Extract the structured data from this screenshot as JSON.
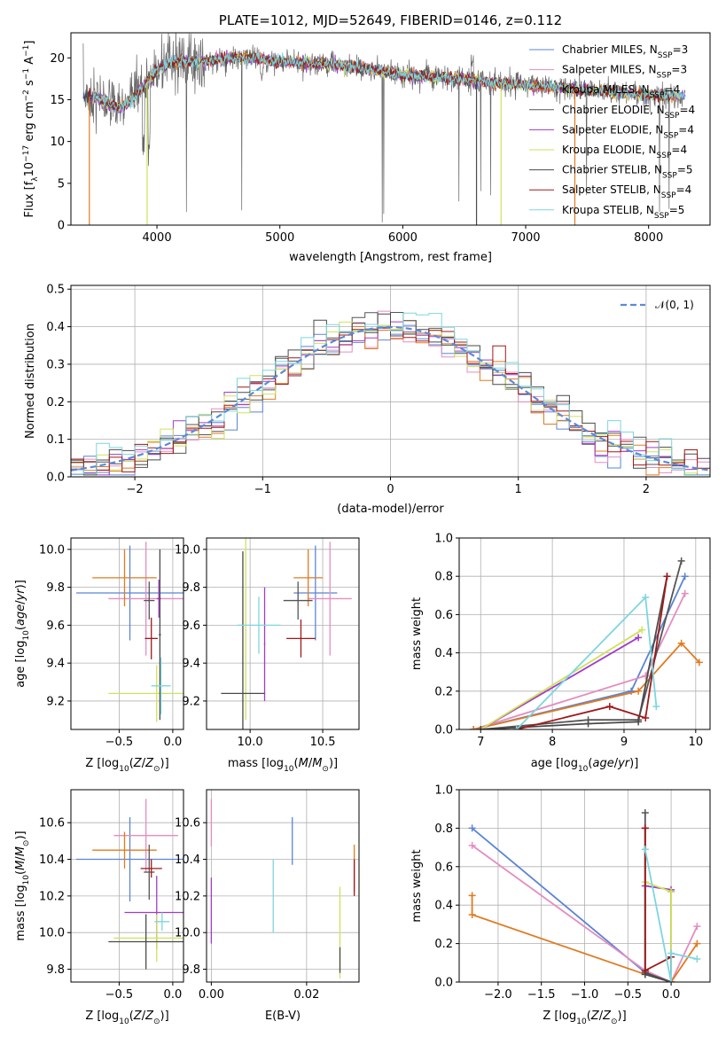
{
  "figure_title": "PLATE=1012, MJD=52649, FIBERID=0146, z=0.112",
  "colors": {
    "chabrier_miles": "#5b84d8",
    "salpeter_miles": "#e58cc0",
    "kroupa_miles": "#e07b22",
    "chabrier_elodie": "#555555",
    "salpeter_elodie": "#a23cc8",
    "kroupa_elodie": "#cfe25a",
    "chabrier_stelib": "#4a4a4a",
    "salpeter_stelib": "#a01818",
    "kroupa_stelib": "#7dd6de"
  },
  "chart_data": [
    {
      "id": "spectrum",
      "type": "line",
      "title": "PLATE=1012, MJD=52649, FIBERID=0146, z=0.112",
      "xlabel": "wavelength [Angstrom, rest frame]",
      "ylabel": "Flux [f_λ 10^-17 erg cm^-2 s^-1 A^-1]",
      "xlim": [
        3300,
        8500
      ],
      "ylim": [
        0,
        23
      ],
      "xticks": [
        "4000",
        "5000",
        "6000",
        "7000",
        "8000"
      ],
      "yticks": [
        "0",
        "5",
        "10",
        "15",
        "20"
      ],
      "grid": false,
      "legend_position": "top-right",
      "legend": [
        "Chabrier MILES, N_SSP=3",
        "Salpeter MILES, N_SSP=3",
        "Kroupa MILES, N_SSP=4",
        "Chabrier ELODIE, N_SSP=4",
        "Salpeter ELODIE, N_SSP=4",
        "Kroupa ELODIE, N_SSP=4",
        "Chabrier STELIB, N_SSP=5",
        "Salpeter STELIB, N_SSP=4",
        "Kroupa STELIB, N_SSP=5"
      ],
      "continuum": {
        "x": [
          3400,
          3500,
          3600,
          3700,
          3800,
          3900,
          4000,
          4100,
          4200,
          4300,
          4400,
          4500,
          4600,
          4700,
          4800,
          4900,
          5000,
          5200,
          5400,
          5600,
          5800,
          6000,
          6200,
          6400,
          6600,
          6800,
          7000,
          7200,
          7400,
          7600,
          7800,
          8000,
          8200
        ],
        "y": [
          15.5,
          15.2,
          14.6,
          14.0,
          15.0,
          16.8,
          18.5,
          19.3,
          19.6,
          19.5,
          19.6,
          19.8,
          20.0,
          20.0,
          20.0,
          19.6,
          19.5,
          19.4,
          19.3,
          18.9,
          18.4,
          18.0,
          17.8,
          17.5,
          17.3,
          17.0,
          16.8,
          16.5,
          16.3,
          16.0,
          15.8,
          15.6,
          15.5
        ]
      },
      "dips": [
        {
          "x": 3450,
          "y": 0.0
        },
        {
          "x": 3920,
          "y": 0.0
        },
        {
          "x": 6600,
          "y": 0.0
        },
        {
          "x": 6800,
          "y": 0.0
        },
        {
          "x": 7400,
          "y": 0.0
        }
      ]
    },
    {
      "id": "residual-histogram",
      "type": "bar",
      "xlabel": "(data-model)/error",
      "ylabel": "Normed distribution",
      "xlim": [
        -2.5,
        2.5
      ],
      "ylim": [
        0,
        0.51
      ],
      "xticks": [
        "−2",
        "−1",
        "0",
        "1",
        "2"
      ],
      "yticks": [
        "0.0",
        "0.1",
        "0.2",
        "0.3",
        "0.4",
        "0.5"
      ],
      "grid": true,
      "legend_position": "top-right",
      "legend": [
        "𝒩(0, 1)"
      ],
      "bin_edges": [
        -2.6,
        2.6
      ],
      "bin_width": 0.1,
      "curve": "standard normal density"
    },
    {
      "id": "age-vs-z",
      "type": "scatter",
      "xlabel": "Z [log10(Z/Z⊙)]",
      "ylabel": "age [log10(age/yr)]",
      "xlim": [
        -0.95,
        0.1
      ],
      "ylim": [
        9.05,
        10.06
      ],
      "xticks": [
        "−0.5",
        "0.0"
      ],
      "xtick_values": [
        -0.5,
        0.0
      ],
      "yticks": [
        "9.2",
        "9.4",
        "9.6",
        "9.8",
        "10.0"
      ],
      "ytick_values": [
        9.2,
        9.4,
        9.6,
        9.8,
        10.0
      ],
      "grid": true,
      "points": [
        {
          "model": "chabrier_miles",
          "x": -0.4,
          "y": 9.77,
          "xerr": 0.5,
          "yerr": 0.25
        },
        {
          "model": "salpeter_miles",
          "x": -0.25,
          "y": 9.74,
          "xerr": 0.35,
          "yerr": 0.3
        },
        {
          "model": "kroupa_miles",
          "x": -0.45,
          "y": 9.85,
          "xerr": 0.3,
          "yerr": 0.15
        },
        {
          "model": "chabrier_elodie",
          "x": -0.22,
          "y": 9.73,
          "xerr": 0.05,
          "yerr": 0.1
        },
        {
          "model": "salpeter_elodie",
          "x": -0.13,
          "y": 9.74,
          "xerr": 0.02,
          "yerr": 0.1
        },
        {
          "model": "kroupa_elodie",
          "x": -0.15,
          "y": 9.24,
          "xerr": 0.45,
          "yerr": 0.15
        },
        {
          "model": "chabrier_stelib",
          "x": -0.12,
          "y": 9.55,
          "xerr": 0.01,
          "yerr": 0.45
        },
        {
          "model": "salpeter_stelib",
          "x": -0.2,
          "y": 9.53,
          "xerr": 0.06,
          "yerr": 0.11
        },
        {
          "model": "kroupa_stelib",
          "x": -0.11,
          "y": 9.28,
          "xerr": 0.09,
          "yerr": 0.15
        }
      ]
    },
    {
      "id": "age-vs-mass",
      "type": "scatter",
      "xlabel": "mass [log10(M/M⊙)]",
      "ylabel": "",
      "xlim": [
        9.7,
        10.75
      ],
      "ylim": [
        9.05,
        10.06
      ],
      "xticks": [
        "10.0",
        "10.5"
      ],
      "xtick_values": [
        10.0,
        10.5
      ],
      "yticks": [
        "9.2",
        "9.4",
        "9.6",
        "9.8",
        "10.0"
      ],
      "ytick_values": [
        9.2,
        9.4,
        9.6,
        9.8,
        10.0
      ],
      "grid": true,
      "points": [
        {
          "model": "chabrier_miles",
          "x": 10.45,
          "y": 9.77,
          "xerr": 0.15,
          "yerr": 0.25
        },
        {
          "model": "salpeter_miles",
          "x": 10.55,
          "y": 9.74,
          "xerr": 0.15,
          "yerr": 0.3
        },
        {
          "model": "kroupa_miles",
          "x": 10.4,
          "y": 9.85,
          "xerr": 0.1,
          "yerr": 0.15
        },
        {
          "model": "chabrier_elodie",
          "x": 10.33,
          "y": 9.73,
          "xerr": 0.1,
          "yerr": 0.1
        },
        {
          "model": "salpeter_elodie",
          "x": 10.1,
          "y": 9.5,
          "xerr": 0.005,
          "yerr": 0.3
        },
        {
          "model": "kroupa_elodie",
          "x": 9.97,
          "y": 9.6,
          "xerr": 0.005,
          "yerr": 0.5
        },
        {
          "model": "chabrier_stelib",
          "x": 9.95,
          "y": 9.24,
          "xerr": 0.15,
          "yerr": 0.75
        },
        {
          "model": "salpeter_stelib",
          "x": 10.35,
          "y": 9.53,
          "xerr": 0.1,
          "yerr": 0.1
        },
        {
          "model": "kroupa_stelib",
          "x": 10.06,
          "y": 9.6,
          "xerr": 0.15,
          "yerr": 0.15
        }
      ]
    },
    {
      "id": "weight-vs-age",
      "type": "line",
      "xlabel": "age [log10(age/yr)]",
      "ylabel": "mass weight",
      "xlim": [
        6.7,
        10.2
      ],
      "ylim": [
        0,
        1.0
      ],
      "xticks": [
        "7",
        "8",
        "9",
        "10"
      ],
      "xtick_values": [
        7,
        8,
        9,
        10
      ],
      "yticks": [
        "0.0",
        "0.2",
        "0.4",
        "0.6",
        "0.8",
        "1.0"
      ],
      "ytick_values": [
        0,
        0.2,
        0.4,
        0.6,
        0.8,
        1.0
      ],
      "grid": true,
      "series": [
        {
          "model": "chabrier_miles",
          "x": [
            6.9,
            9.1,
            9.85
          ],
          "y": [
            0.0,
            0.2,
            0.8
          ]
        },
        {
          "model": "salpeter_miles",
          "x": [
            6.9,
            9.3,
            9.85
          ],
          "y": [
            0.0,
            0.28,
            0.71
          ]
        },
        {
          "model": "kroupa_miles",
          "x": [
            6.9,
            9.2,
            9.8,
            10.05
          ],
          "y": [
            0.0,
            0.2,
            0.45,
            0.35
          ]
        },
        {
          "model": "chabrier_elodie",
          "x": [
            7.0,
            8.5,
            9.2,
            9.8
          ],
          "y": [
            0.0,
            0.05,
            0.05,
            0.88
          ]
        },
        {
          "model": "salpeter_elodie",
          "x": [
            7.0,
            9.2
          ],
          "y": [
            0.0,
            0.48
          ]
        },
        {
          "model": "kroupa_elodie",
          "x": [
            7.0,
            9.25
          ],
          "y": [
            0.0,
            0.52
          ]
        },
        {
          "model": "chabrier_stelib",
          "x": [
            7.0,
            8.5,
            9.2,
            9.6
          ],
          "y": [
            0.0,
            0.03,
            0.04,
            0.8
          ]
        },
        {
          "model": "salpeter_stelib",
          "x": [
            7.5,
            8.8,
            9.3,
            9.6
          ],
          "y": [
            0.0,
            0.12,
            0.06,
            0.8
          ]
        },
        {
          "model": "kroupa_stelib",
          "x": [
            7.5,
            9.3,
            9.45
          ],
          "y": [
            0.0,
            0.69,
            0.12
          ]
        }
      ]
    },
    {
      "id": "mass-vs-z",
      "type": "scatter",
      "xlabel": "Z [log10(Z/Z⊙)]",
      "ylabel": "mass [log10(M/M⊙)]",
      "xlim": [
        -0.95,
        0.1
      ],
      "ylim": [
        9.73,
        10.78
      ],
      "xticks": [
        "−0.5",
        "0.0"
      ],
      "xtick_values": [
        -0.5,
        0.0
      ],
      "yticks": [
        "9.8",
        "10.0",
        "10.2",
        "10.4",
        "10.6"
      ],
      "ytick_values": [
        9.8,
        10.0,
        10.2,
        10.4,
        10.6
      ],
      "grid": true,
      "points": [
        {
          "model": "chabrier_miles",
          "x": -0.4,
          "y": 10.4,
          "xerr": 0.5,
          "yerr": 0.23
        },
        {
          "model": "salpeter_miles",
          "x": -0.25,
          "y": 10.53,
          "xerr": 0.3,
          "yerr": 0.2
        },
        {
          "model": "kroupa_miles",
          "x": -0.45,
          "y": 10.45,
          "xerr": 0.3,
          "yerr": 0.1
        },
        {
          "model": "chabrier_elodie",
          "x": -0.22,
          "y": 10.33,
          "xerr": 0.05,
          "yerr": 0.15
        },
        {
          "model": "salpeter_elodie",
          "x": -0.15,
          "y": 10.11,
          "xerr": 0.3,
          "yerr": 0.2
        },
        {
          "model": "kroupa_elodie",
          "x": -0.15,
          "y": 9.97,
          "xerr": 0.4,
          "yerr": 0.13
        },
        {
          "model": "chabrier_stelib",
          "x": -0.25,
          "y": 9.95,
          "xerr": 0.35,
          "yerr": 0.15
        },
        {
          "model": "salpeter_stelib",
          "x": -0.2,
          "y": 10.35,
          "xerr": 0.1,
          "yerr": 0.05
        },
        {
          "model": "kroupa_stelib",
          "x": -0.1,
          "y": 10.06,
          "xerr": 0.07,
          "yerr": 0.05
        }
      ]
    },
    {
      "id": "mass-vs-ebv",
      "type": "scatter",
      "xlabel": "E(B-V)",
      "ylabel": "",
      "xlim": [
        -0.001,
        0.031
      ],
      "ylim": [
        9.73,
        10.78
      ],
      "xticks": [
        "0.00",
        "0.02"
      ],
      "xtick_values": [
        0.0,
        0.02
      ],
      "yticks": [
        "9.8",
        "10.0",
        "10.2",
        "10.4",
        "10.6"
      ],
      "ytick_values": [
        9.8,
        10.0,
        10.2,
        10.4,
        10.6
      ],
      "grid": true,
      "points": [
        {
          "model": "salpeter_miles",
          "x": 0.0,
          "y": 10.6,
          "xerr": 0.0,
          "yerr": 0.13
        },
        {
          "model": "salpeter_elodie",
          "x": 0.0,
          "y": 10.12,
          "xerr": 0.0,
          "yerr": 0.18
        },
        {
          "model": "chabrier_miles",
          "x": 0.017,
          "y": 10.5,
          "xerr": 0.0,
          "yerr": 0.13
        },
        {
          "model": "kroupa_stelib",
          "x": 0.013,
          "y": 10.2,
          "xerr": 0.0,
          "yerr": 0.2
        },
        {
          "model": "kroupa_elodie",
          "x": 0.027,
          "y": 10.0,
          "xerr": 0.0,
          "yerr": 0.25
        },
        {
          "model": "chabrier_stelib",
          "x": 0.027,
          "y": 9.85,
          "xerr": 0.0,
          "yerr": 0.07
        },
        {
          "model": "kroupa_miles",
          "x": 0.03,
          "y": 10.35,
          "xerr": 0.0,
          "yerr": 0.13
        },
        {
          "model": "salpeter_stelib",
          "x": 0.03,
          "y": 10.3,
          "xerr": 0.0,
          "yerr": 0.1
        }
      ]
    },
    {
      "id": "weight-vs-z",
      "type": "line",
      "xlabel": "Z [log10(Z/Z⊙)]",
      "ylabel": "mass weight",
      "xlim": [
        -2.45,
        0.45
      ],
      "ylim": [
        0,
        1.0
      ],
      "xticks": [
        "−2.0",
        "−1.5",
        "−1.0",
        "−0.5",
        "0.0"
      ],
      "xtick_values": [
        -2.0,
        -1.5,
        -1.0,
        -0.5,
        0.0
      ],
      "yticks": [
        "0.0",
        "0.2",
        "0.4",
        "0.6",
        "0.8",
        "1.0"
      ],
      "ytick_values": [
        0,
        0.2,
        0.4,
        0.6,
        0.8,
        1.0
      ],
      "grid": true,
      "series": [
        {
          "model": "chabrier_miles",
          "x": [
            -2.3,
            -0.3,
            0.0
          ],
          "y": [
            0.8,
            0.05,
            0.0
          ]
        },
        {
          "model": "salpeter_miles",
          "x": [
            -2.3,
            -0.3,
            0.0,
            0.3
          ],
          "y": [
            0.71,
            0.06,
            0.0,
            0.29
          ]
        },
        {
          "model": "kroupa_miles",
          "x": [
            -2.3,
            -2.3,
            -0.3,
            0.0,
            0.3
          ],
          "y": [
            0.45,
            0.35,
            0.04,
            0.0,
            0.2
          ]
        },
        {
          "model": "chabrier_elodie",
          "x": [
            -0.3,
            -0.3,
            0.0,
            0.0
          ],
          "y": [
            0.88,
            0.05,
            0.0,
            0.47
          ]
        },
        {
          "model": "salpeter_elodie",
          "x": [
            -0.3,
            0.0
          ],
          "y": [
            0.5,
            0.48
          ]
        },
        {
          "model": "kroupa_elodie",
          "x": [
            -0.3,
            0.0,
            0.0
          ],
          "y": [
            0.52,
            0.47,
            0.0
          ]
        },
        {
          "model": "chabrier_stelib",
          "x": [
            -0.3,
            -0.3,
            0.0
          ],
          "y": [
            0.8,
            0.04,
            0.0
          ]
        },
        {
          "model": "salpeter_stelib",
          "x": [
            -0.3,
            -0.3,
            0.0,
            0.0
          ],
          "y": [
            0.8,
            0.06,
            0.13,
            0.0
          ]
        },
        {
          "model": "kroupa_stelib",
          "x": [
            -0.3,
            0.0,
            0.0,
            0.3
          ],
          "y": [
            0.69,
            0.0,
            0.15,
            0.12
          ]
        }
      ]
    }
  ]
}
